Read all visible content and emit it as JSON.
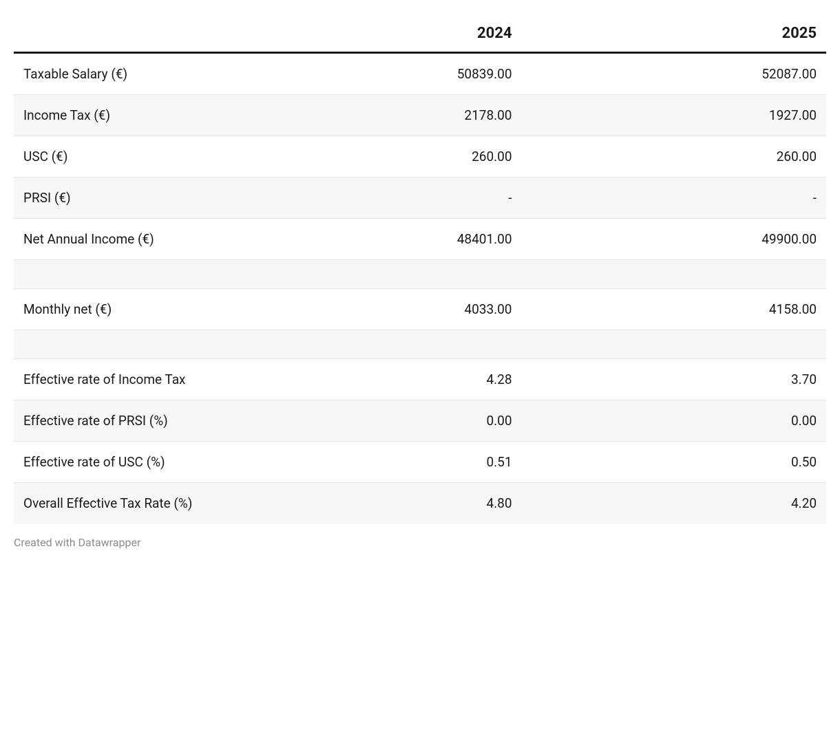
{
  "table": {
    "columns": [
      "",
      "2024",
      "2025"
    ],
    "column_alignments": [
      "left",
      "right",
      "right"
    ],
    "column_widths_pct": [
      25,
      37.5,
      37.5
    ],
    "header_fontsize": 22,
    "header_fontweight": 700,
    "header_border_bottom": "3px solid #191919",
    "cell_fontsize": 19,
    "row_border": "1px solid #e5e5e5",
    "row_alt_bg": "#f7f7f7",
    "row_bg": "#ffffff",
    "text_color": "#191919",
    "rows": [
      {
        "type": "data",
        "alt": false,
        "label": "Taxable Salary (€)",
        "y2024": "50839.00",
        "y2025": "52087.00"
      },
      {
        "type": "data",
        "alt": true,
        "label": "Income Tax (€)",
        "y2024": "2178.00",
        "y2025": "1927.00"
      },
      {
        "type": "data",
        "alt": false,
        "label": "USC (€)",
        "y2024": "260.00",
        "y2025": "260.00"
      },
      {
        "type": "data",
        "alt": true,
        "label": "PRSI (€)",
        "y2024": "-",
        "y2025": "-"
      },
      {
        "type": "data",
        "alt": false,
        "label": "Net Annual Income (€)",
        "y2024": "48401.00",
        "y2025": "49900.00"
      },
      {
        "type": "blank"
      },
      {
        "type": "data",
        "alt": false,
        "label": "Monthly net (€)",
        "y2024": "4033.00",
        "y2025": "4158.00"
      },
      {
        "type": "blank"
      },
      {
        "type": "data",
        "alt": false,
        "label": "Effective rate of Income Tax",
        "y2024": "4.28",
        "y2025": "3.70"
      },
      {
        "type": "data",
        "alt": true,
        "label": "Effective rate of PRSI (%)",
        "y2024": "0.00",
        "y2025": "0.00"
      },
      {
        "type": "data",
        "alt": false,
        "label": "Effective rate of USC (%)",
        "y2024": "0.51",
        "y2025": "0.50"
      },
      {
        "type": "data",
        "alt": true,
        "label": "Overall Effective Tax Rate (%)",
        "y2024": "4.80",
        "y2025": "4.20"
      }
    ]
  },
  "footer": {
    "text": "Created with Datawrapper",
    "color": "#8c8c8c",
    "fontsize": 16
  }
}
